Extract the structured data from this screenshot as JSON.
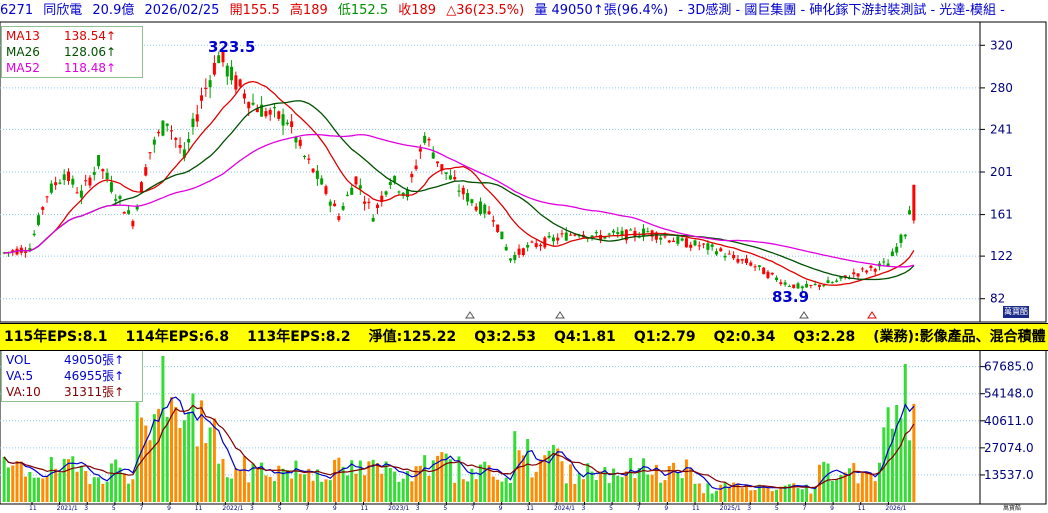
{
  "header": {
    "code": "6271",
    "name": "同欣電",
    "cap": "20.9億",
    "date": "2026/02/25",
    "open": "開155.5",
    "high": "高189",
    "low": "低152.5",
    "close": "收189",
    "change": "△36(23.5%)",
    "volume": "量 49050↑張(96.4%)",
    "tags": "- 3D感測 - 國巨集團 - 砷化鎵下游封裝測試 - 光達-模組 -"
  },
  "price_legend": [
    {
      "label": "MA13",
      "value": "138.54↑",
      "color": "#e00000"
    },
    {
      "label": "MA26",
      "value": "128.06↑",
      "color": "#005000"
    },
    {
      "label": "MA52",
      "value": "118.48↑",
      "color": "#e000e0"
    }
  ],
  "volume_legend": [
    {
      "label": "VOL",
      "value": "49050張↑",
      "color": "#0000cc"
    },
    {
      "label": "VA:5",
      "value": "46955張↑",
      "color": "#0000cc"
    },
    {
      "label": "VA:10",
      "value": "31311張↑",
      "color": "#800000"
    }
  ],
  "annotations": {
    "high": "323.5",
    "low": "83.9"
  },
  "eps_bar": [
    "115年EPS:8.1",
    "114年EPS:6.8",
    "113年EPS:8.2",
    "淨值:125.22",
    "Q3:2.53",
    "Q4:1.81",
    "Q1:2.79",
    "Q2:0.34",
    "Q3:2.28",
    "(業務):影像產品、混合積體"
  ],
  "corner_label": "萬寶酷",
  "corner_small": "萬寶酷",
  "colors": {
    "up": "#ff0000",
    "down": "#00a000",
    "ma13": "#e00000",
    "ma26": "#005000",
    "ma52": "#e000e0",
    "va5": "#0000cc",
    "va10": "#800000",
    "vol_up": "#ff8c00",
    "vol_down": "#33dd33",
    "grid": "#88c8f0",
    "axis_text": "#000080"
  },
  "chart_data": [
    {
      "type": "candlestick",
      "title": "",
      "ylim": [
        62,
        340
      ],
      "y_ticks": [
        "320",
        "280",
        "241",
        "201",
        "161",
        "122",
        "82"
      ],
      "y_tick_values": [
        320,
        280,
        241,
        201,
        161,
        122,
        82
      ],
      "x_tick_labels": [
        "11",
        "2021/1",
        "3",
        "5",
        "7",
        "9",
        "11",
        "2022/1",
        "3",
        "5",
        "7",
        "9",
        "11",
        "2023/1",
        "3",
        "5",
        "7",
        "9",
        "11",
        "2024/1",
        "3",
        "5",
        "7",
        "9",
        "11",
        "2025/1",
        "3",
        "5",
        "7",
        "9",
        "11",
        "2026/1"
      ],
      "grid": true,
      "close_anchors": [
        [
          0,
          125
        ],
        [
          6,
          130
        ],
        [
          10,
          180
        ],
        [
          14,
          200
        ],
        [
          18,
          180
        ],
        [
          22,
          210
        ],
        [
          26,
          180
        ],
        [
          30,
          155
        ],
        [
          34,
          220
        ],
        [
          38,
          250
        ],
        [
          42,
          215
        ],
        [
          46,
          270
        ],
        [
          50,
          310
        ],
        [
          54,
          285
        ],
        [
          58,
          265
        ],
        [
          62,
          255
        ],
        [
          66,
          250
        ],
        [
          70,
          215
        ],
        [
          74,
          190
        ],
        [
          78,
          160
        ],
        [
          82,
          195
        ],
        [
          86,
          160
        ],
        [
          90,
          195
        ],
        [
          94,
          180
        ],
        [
          98,
          235
        ],
        [
          102,
          205
        ],
        [
          106,
          185
        ],
        [
          110,
          170
        ],
        [
          114,
          160
        ],
        [
          118,
          120
        ],
        [
          122,
          130
        ],
        [
          126,
          135
        ],
        [
          130,
          140
        ],
        [
          134,
          145
        ],
        [
          138,
          140
        ],
        [
          142,
          142
        ],
        [
          146,
          142
        ],
        [
          150,
          145
        ],
        [
          154,
          140
        ],
        [
          158,
          135
        ],
        [
          162,
          132
        ],
        [
          166,
          128
        ],
        [
          170,
          120
        ],
        [
          174,
          115
        ],
        [
          178,
          105
        ],
        [
          182,
          97
        ],
        [
          186,
          92
        ],
        [
          190,
          95
        ],
        [
          194,
          98
        ],
        [
          198,
          105
        ],
        [
          202,
          110
        ],
        [
          206,
          115
        ],
        [
          208,
          130
        ],
        [
          210,
          145
        ],
        [
          212,
          189
        ]
      ],
      "ma_last": {
        "MA13": 138.54,
        "MA26": 128.06,
        "MA52": 118.48
      },
      "high_label": 323.5,
      "low_label": 83.9
    },
    {
      "type": "bar",
      "title": "",
      "ylim": [
        0,
        75000
      ],
      "y_ticks": [
        "67685.0",
        "54148.0",
        "40611.0",
        "27074.0",
        "13537.0"
      ],
      "y_tick_values": [
        67685,
        54148,
        40611,
        27074,
        13537
      ],
      "series": [
        {
          "name": "VOL",
          "last": 49050
        },
        {
          "name": "VA:5",
          "last": 46955
        },
        {
          "name": "VA:10",
          "last": 31311
        }
      ],
      "grid": true
    }
  ]
}
